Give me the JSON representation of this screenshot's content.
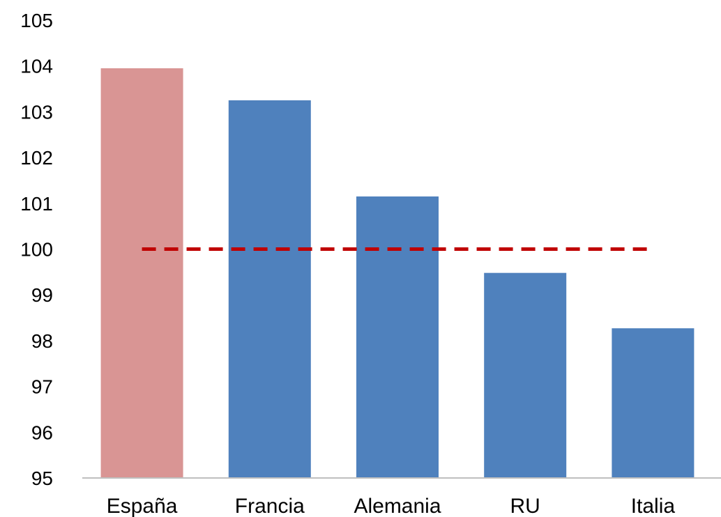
{
  "chart_data": {
    "type": "bar",
    "categories": [
      "España",
      "Francia",
      "Alemania",
      "RU",
      "Italia"
    ],
    "values": [
      103.95,
      103.25,
      101.15,
      99.48,
      98.27
    ],
    "bar_colors": [
      "#d99594",
      "#4f81bd",
      "#4f81bd",
      "#4f81bd",
      "#4f81bd"
    ],
    "ylim": [
      95,
      105
    ],
    "yticks": [
      95,
      96,
      97,
      98,
      99,
      100,
      101,
      102,
      103,
      104,
      105
    ],
    "ytick_labels": [
      "95",
      "96",
      "97",
      "98",
      "99",
      "100",
      "101",
      "102",
      "103",
      "104",
      "105"
    ],
    "reference_line": {
      "value": 100,
      "color": "#c00000",
      "style": "dashed"
    },
    "axis_color": "#bfbfbf",
    "grid": false,
    "title": "",
    "xlabel": "",
    "ylabel": ""
  }
}
